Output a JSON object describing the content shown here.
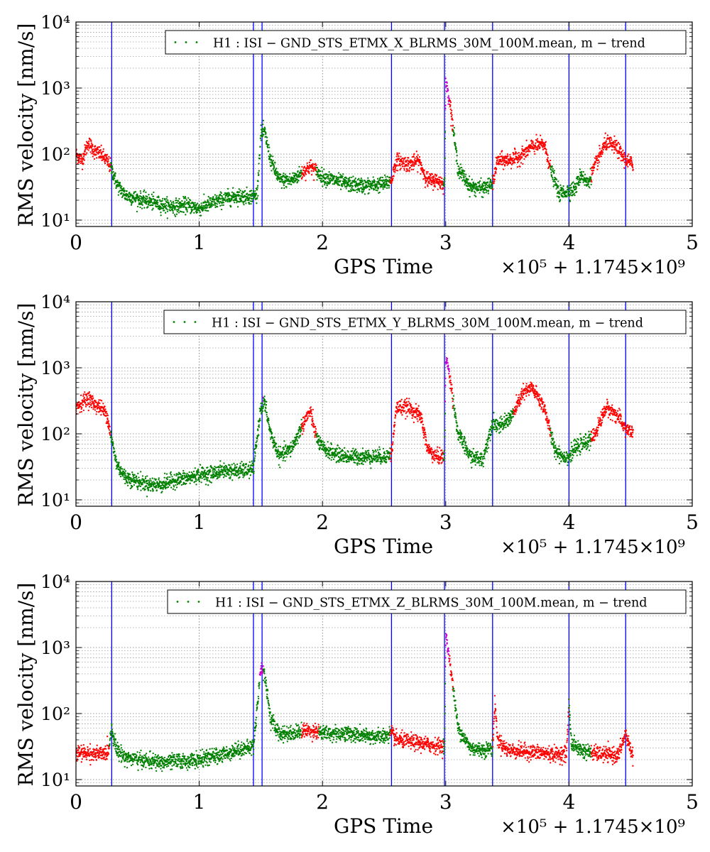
{
  "chart_data": [
    {
      "type": "scatter",
      "legend": "H1 : ISI − GND_STS_ETMX_X_BLRMS_30M_100M.mean, m − trend",
      "xlabel": "GPS Time",
      "ylabel": "RMS velocity [nm/s]",
      "x_offset_label": "×10⁵ + 1.1745×10⁹",
      "x_unit_scale": 100000,
      "x_offset": 1174500000,
      "xlim": [
        0,
        5
      ],
      "ylim": [
        8,
        10000
      ],
      "yscale": "log",
      "grid": true,
      "legend_position": "top-right",
      "xticks": [
        "0",
        "1",
        "2",
        "3",
        "4",
        "5"
      ],
      "yticks": [
        "10¹",
        "10²",
        "10³",
        "10⁴"
      ],
      "vlines": [
        0.29,
        1.44,
        1.51,
        2.56,
        2.99,
        3.38,
        4.0,
        4.46
      ],
      "colors": {
        "normal": "#008000",
        "elevated": "#ff0000",
        "high": "#cc00cc",
        "vline": "#0000ff"
      },
      "trend_points": [
        [
          0.0,
          100
        ],
        [
          0.05,
          80
        ],
        [
          0.1,
          150
        ],
        [
          0.15,
          110
        ],
        [
          0.2,
          100
        ],
        [
          0.25,
          80
        ],
        [
          0.29,
          60
        ],
        [
          0.33,
          35
        ],
        [
          0.4,
          24
        ],
        [
          0.5,
          21
        ],
        [
          0.6,
          19
        ],
        [
          0.7,
          17
        ],
        [
          0.8,
          16
        ],
        [
          0.9,
          17
        ],
        [
          1.0,
          15
        ],
        [
          1.1,
          18
        ],
        [
          1.2,
          21
        ],
        [
          1.3,
          23
        ],
        [
          1.4,
          23
        ],
        [
          1.44,
          23
        ],
        [
          1.47,
          25
        ],
        [
          1.5,
          200
        ],
        [
          1.53,
          220
        ],
        [
          1.58,
          80
        ],
        [
          1.65,
          40
        ],
        [
          1.75,
          40
        ],
        [
          1.85,
          55
        ],
        [
          1.9,
          65
        ],
        [
          1.95,
          55
        ],
        [
          2.0,
          45
        ],
        [
          2.1,
          40
        ],
        [
          2.2,
          35
        ],
        [
          2.35,
          33
        ],
        [
          2.5,
          35
        ],
        [
          2.56,
          40
        ],
        [
          2.6,
          80
        ],
        [
          2.7,
          70
        ],
        [
          2.78,
          80
        ],
        [
          2.85,
          40
        ],
        [
          2.92,
          40
        ],
        [
          2.99,
          35
        ],
        [
          3.0,
          1200
        ],
        [
          3.03,
          700
        ],
        [
          3.1,
          60
        ],
        [
          3.2,
          32
        ],
        [
          3.3,
          30
        ],
        [
          3.38,
          35
        ],
        [
          3.42,
          80
        ],
        [
          3.5,
          80
        ],
        [
          3.6,
          90
        ],
        [
          3.7,
          130
        ],
        [
          3.8,
          140
        ],
        [
          3.85,
          60
        ],
        [
          3.92,
          25
        ],
        [
          4.0,
          28
        ],
        [
          4.05,
          30
        ],
        [
          4.1,
          50
        ],
        [
          4.15,
          35
        ],
        [
          4.2,
          60
        ],
        [
          4.3,
          150
        ],
        [
          4.38,
          130
        ],
        [
          4.46,
          80
        ],
        [
          4.52,
          70
        ]
      ],
      "elevated_ranges": [
        [
          0.0,
          0.28
        ],
        [
          1.83,
          1.95
        ],
        [
          2.55,
          2.98
        ],
        [
          3.0,
          3.06
        ],
        [
          3.38,
          3.85
        ],
        [
          4.18,
          4.52
        ]
      ],
      "high_ranges": [
        [
          1.49,
          1.52
        ],
        [
          2.98,
          3.03
        ]
      ]
    },
    {
      "type": "scatter",
      "legend": "H1 : ISI − GND_STS_ETMX_Y_BLRMS_30M_100M.mean, m − trend",
      "xlabel": "GPS Time",
      "ylabel": "RMS velocity [nm/s]",
      "x_offset_label": "×10⁵ + 1.1745×10⁹",
      "x_unit_scale": 100000,
      "x_offset": 1174500000,
      "xlim": [
        0,
        5
      ],
      "ylim": [
        8,
        10000
      ],
      "yscale": "log",
      "grid": true,
      "legend_position": "top-right",
      "xticks": [
        "0",
        "1",
        "2",
        "3",
        "4",
        "5"
      ],
      "yticks": [
        "10¹",
        "10²",
        "10³",
        "10⁴"
      ],
      "vlines": [
        0.29,
        1.44,
        1.51,
        2.56,
        2.99,
        3.38,
        4.0,
        4.46
      ],
      "colors": {
        "normal": "#008000",
        "elevated": "#ff0000",
        "high": "#cc00cc",
        "vline": "#0000ff"
      },
      "trend_points": [
        [
          0.0,
          250
        ],
        [
          0.05,
          300
        ],
        [
          0.1,
          350
        ],
        [
          0.15,
          280
        ],
        [
          0.2,
          250
        ],
        [
          0.25,
          200
        ],
        [
          0.29,
          80
        ],
        [
          0.33,
          35
        ],
        [
          0.4,
          22
        ],
        [
          0.5,
          19
        ],
        [
          0.6,
          17
        ],
        [
          0.7,
          17
        ],
        [
          0.8,
          20
        ],
        [
          0.9,
          21
        ],
        [
          1.0,
          24
        ],
        [
          1.1,
          25
        ],
        [
          1.2,
          28
        ],
        [
          1.3,
          27
        ],
        [
          1.4,
          28
        ],
        [
          1.44,
          30
        ],
        [
          1.5,
          250
        ],
        [
          1.53,
          300
        ],
        [
          1.58,
          100
        ],
        [
          1.65,
          45
        ],
        [
          1.75,
          60
        ],
        [
          1.85,
          150
        ],
        [
          1.9,
          220
        ],
        [
          1.95,
          90
        ],
        [
          2.0,
          60
        ],
        [
          2.1,
          50
        ],
        [
          2.2,
          45
        ],
        [
          2.35,
          45
        ],
        [
          2.5,
          45
        ],
        [
          2.56,
          50
        ],
        [
          2.6,
          250
        ],
        [
          2.7,
          250
        ],
        [
          2.8,
          180
        ],
        [
          2.85,
          60
        ],
        [
          2.92,
          45
        ],
        [
          2.99,
          45
        ],
        [
          3.0,
          1500
        ],
        [
          3.03,
          800
        ],
        [
          3.1,
          100
        ],
        [
          3.2,
          45
        ],
        [
          3.3,
          40
        ],
        [
          3.38,
          150
        ],
        [
          3.45,
          130
        ],
        [
          3.55,
          200
        ],
        [
          3.62,
          400
        ],
        [
          3.7,
          500
        ],
        [
          3.8,
          250
        ],
        [
          3.88,
          60
        ],
        [
          3.95,
          45
        ],
        [
          4.0,
          45
        ],
        [
          4.05,
          60
        ],
        [
          4.12,
          70
        ],
        [
          4.2,
          90
        ],
        [
          4.3,
          250
        ],
        [
          4.38,
          200
        ],
        [
          4.46,
          120
        ],
        [
          4.52,
          100
        ]
      ],
      "elevated_ranges": [
        [
          0.0,
          0.28
        ],
        [
          1.83,
          1.95
        ],
        [
          2.55,
          2.98
        ],
        [
          3.0,
          3.06
        ],
        [
          3.55,
          3.85
        ],
        [
          4.18,
          4.52
        ]
      ],
      "high_ranges": [
        [
          1.49,
          1.52
        ],
        [
          2.98,
          3.03
        ]
      ]
    },
    {
      "type": "scatter",
      "legend": "H1 : ISI − GND_STS_ETMX_Z_BLRMS_30M_100M.mean, m − trend",
      "xlabel": "GPS Time",
      "ylabel": "RMS velocity [nm/s]",
      "x_offset_label": "×10⁵ + 1.1745×10⁹",
      "x_unit_scale": 100000,
      "x_offset": 1174500000,
      "xlim": [
        0,
        5
      ],
      "ylim": [
        8,
        10000
      ],
      "yscale": "log",
      "grid": true,
      "legend_position": "top-right",
      "xticks": [
        "0",
        "1",
        "2",
        "3",
        "4",
        "5"
      ],
      "yticks": [
        "10¹",
        "10²",
        "10³",
        "10⁴"
      ],
      "vlines": [
        0.29,
        1.44,
        1.51,
        2.56,
        2.99,
        3.38,
        4.0,
        4.46
      ],
      "colors": {
        "normal": "#008000",
        "elevated": "#ff0000",
        "high": "#cc00cc",
        "vline": "#0000ff"
      },
      "trend_points": [
        [
          0.0,
          25
        ],
        [
          0.1,
          25
        ],
        [
          0.2,
          24
        ],
        [
          0.26,
          26
        ],
        [
          0.29,
          60
        ],
        [
          0.33,
          28
        ],
        [
          0.4,
          22
        ],
        [
          0.5,
          20
        ],
        [
          0.6,
          19
        ],
        [
          0.7,
          18
        ],
        [
          0.8,
          19
        ],
        [
          0.9,
          19
        ],
        [
          1.0,
          20
        ],
        [
          1.1,
          22
        ],
        [
          1.2,
          24
        ],
        [
          1.3,
          28
        ],
        [
          1.4,
          30
        ],
        [
          1.44,
          32
        ],
        [
          1.5,
          500
        ],
        [
          1.53,
          400
        ],
        [
          1.58,
          80
        ],
        [
          1.65,
          50
        ],
        [
          1.75,
          50
        ],
        [
          1.85,
          55
        ],
        [
          1.95,
          55
        ],
        [
          2.0,
          50
        ],
        [
          2.1,
          50
        ],
        [
          2.2,
          50
        ],
        [
          2.35,
          45
        ],
        [
          2.5,
          45
        ],
        [
          2.56,
          50
        ],
        [
          2.6,
          40
        ],
        [
          2.7,
          38
        ],
        [
          2.8,
          35
        ],
        [
          2.9,
          33
        ],
        [
          2.99,
          32
        ],
        [
          3.0,
          1500
        ],
        [
          3.03,
          700
        ],
        [
          3.1,
          60
        ],
        [
          3.2,
          30
        ],
        [
          3.3,
          28
        ],
        [
          3.38,
          30
        ],
        [
          3.4,
          150
        ],
        [
          3.42,
          40
        ],
        [
          3.5,
          28
        ],
        [
          3.6,
          27
        ],
        [
          3.7,
          26
        ],
        [
          3.8,
          25
        ],
        [
          3.9,
          24
        ],
        [
          3.98,
          25
        ],
        [
          4.0,
          150
        ],
        [
          4.02,
          35
        ],
        [
          4.1,
          28
        ],
        [
          4.2,
          25
        ],
        [
          4.3,
          24
        ],
        [
          4.4,
          23
        ],
        [
          4.46,
          50
        ],
        [
          4.52,
          22
        ]
      ],
      "elevated_ranges": [
        [
          0.0,
          0.27
        ],
        [
          1.83,
          1.97
        ],
        [
          2.55,
          2.98
        ],
        [
          3.0,
          3.06
        ],
        [
          3.38,
          4.0
        ],
        [
          4.18,
          4.52
        ]
      ],
      "high_ranges": [
        [
          1.49,
          1.52
        ],
        [
          2.98,
          3.03
        ],
        [
          4.45,
          4.47
        ]
      ]
    }
  ]
}
